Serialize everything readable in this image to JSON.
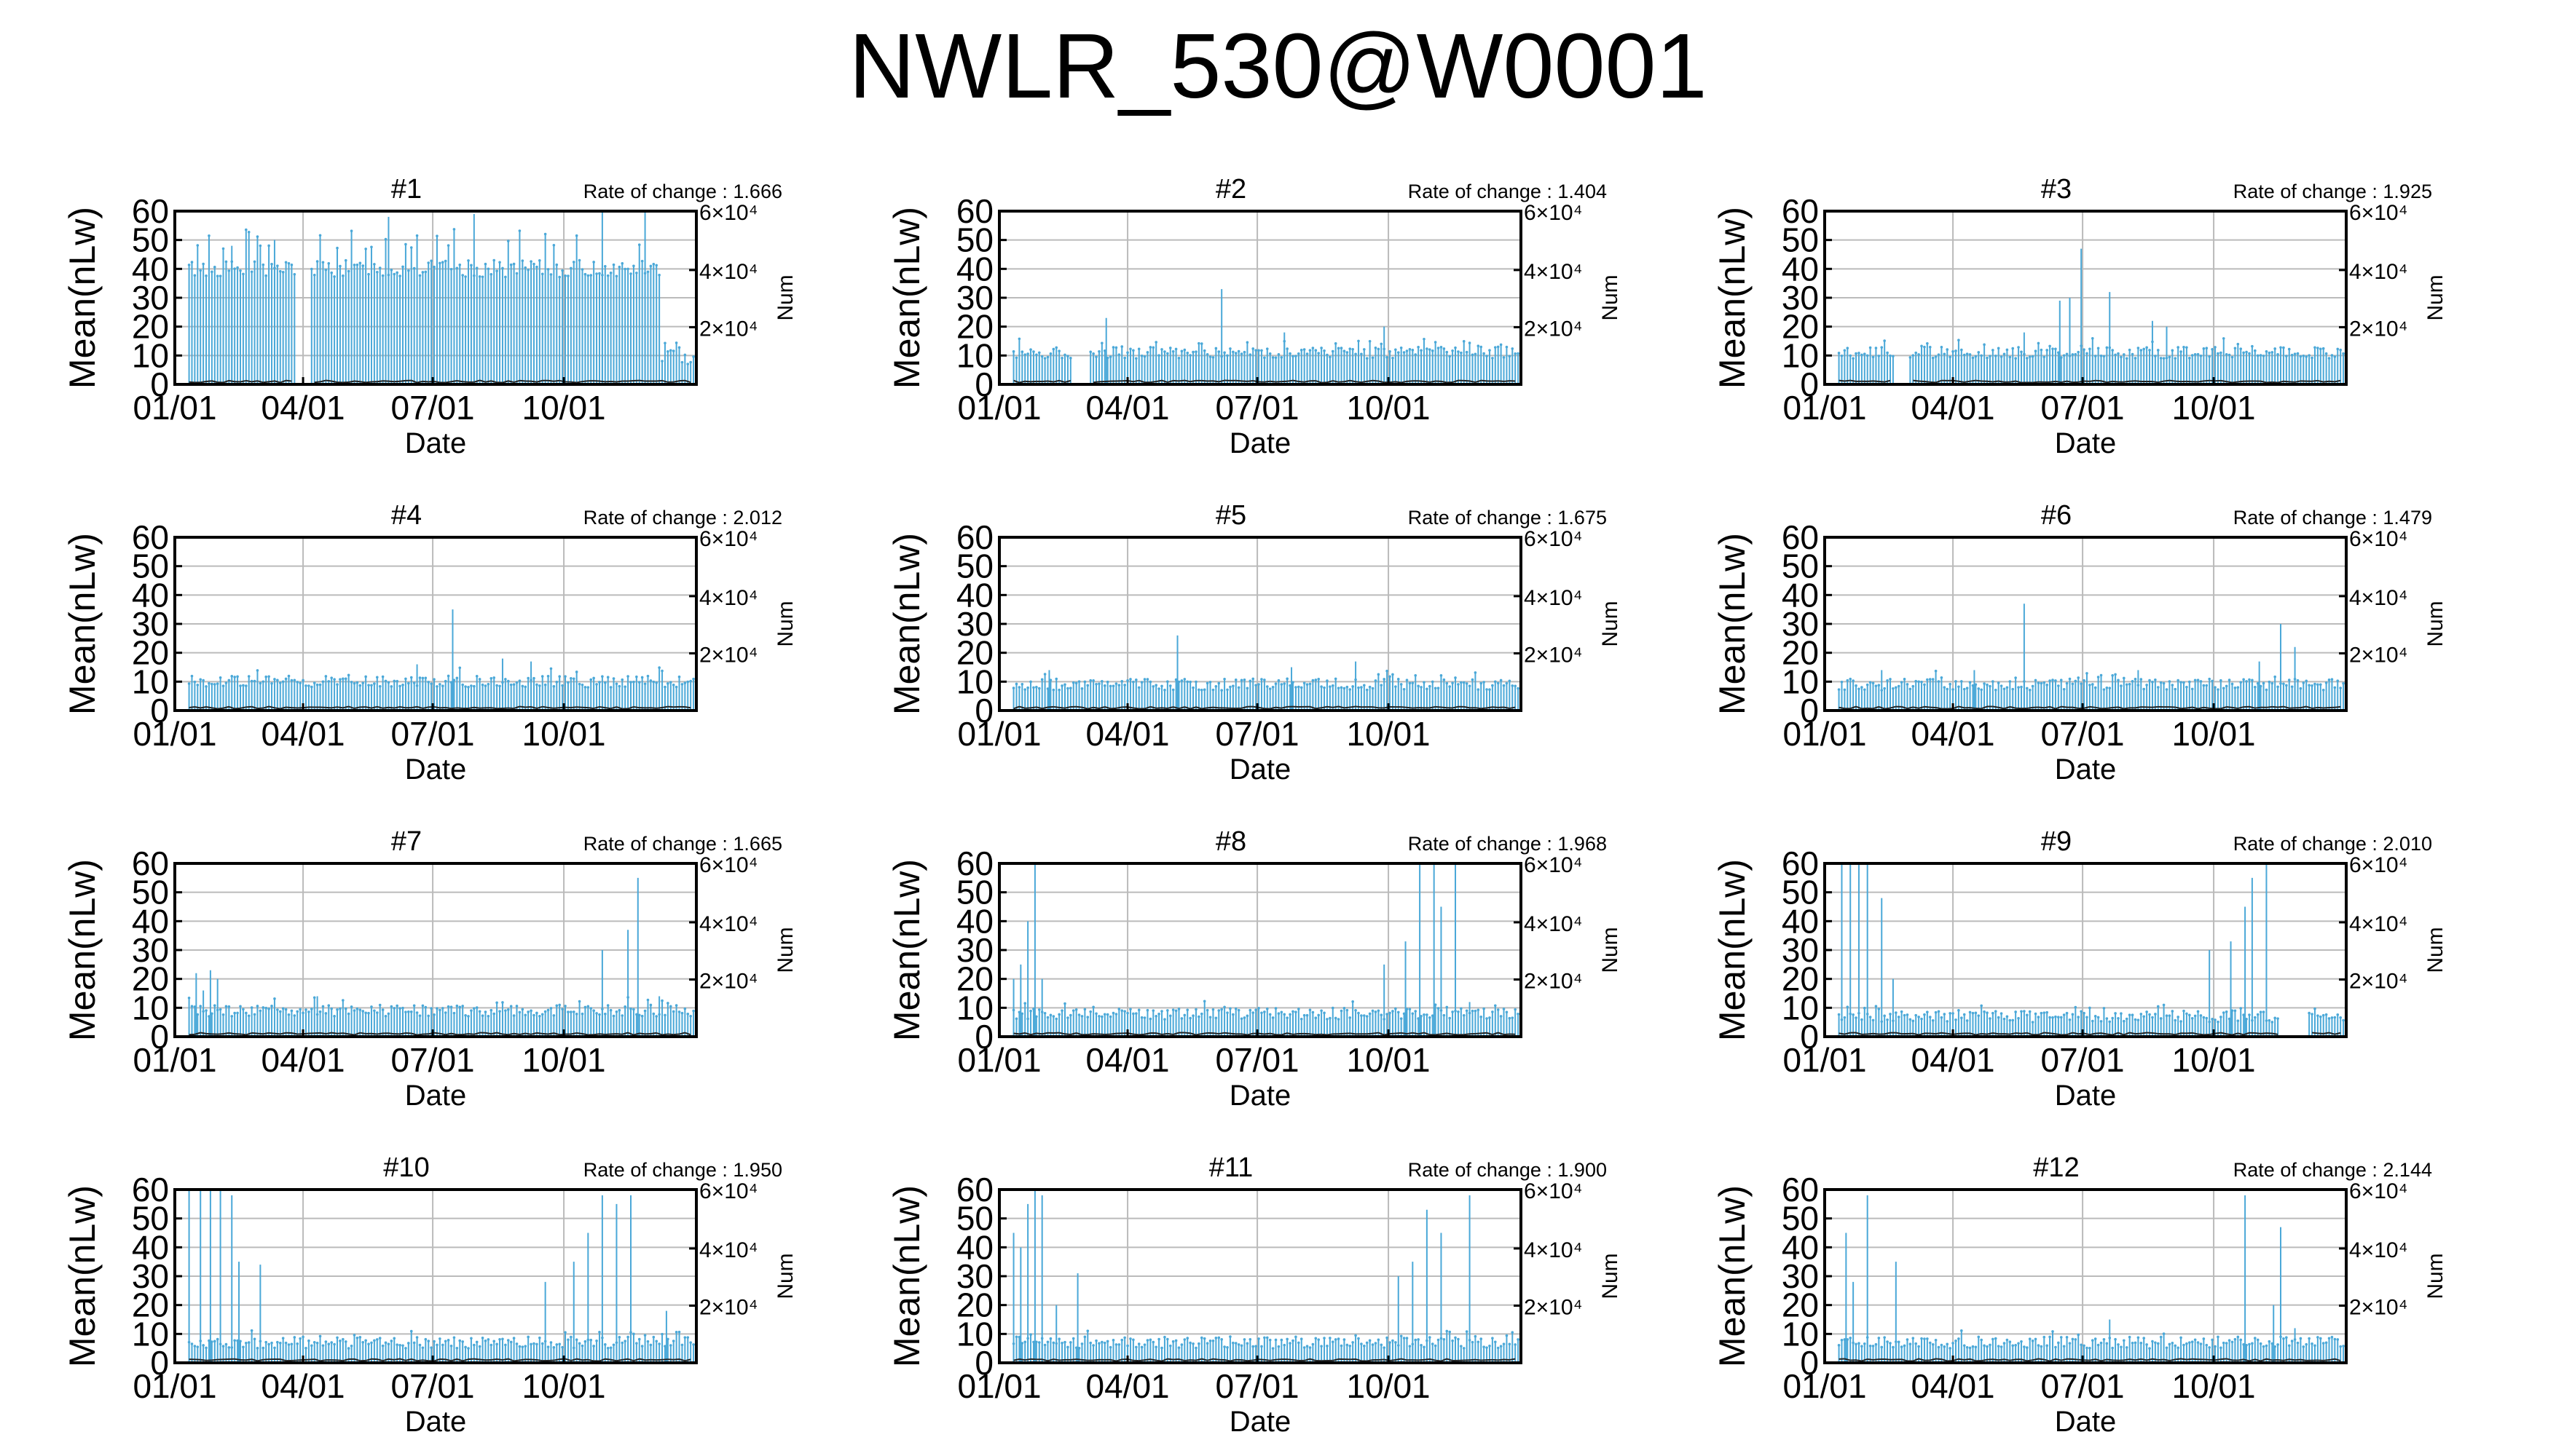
{
  "page": {
    "title": "NWLR_530@W0001"
  },
  "chart_data": [
    {
      "type": "line",
      "title": "#1",
      "rate_label": "Rate of change : 1.666",
      "xlabel": "Date",
      "ylabel": "Mean(nLw)",
      "y2label": "Num",
      "xticks": [
        "01/01",
        "04/01",
        "07/01",
        "10/01"
      ],
      "yticks": [
        "0",
        "10",
        "20",
        "30",
        "40",
        "50",
        "60"
      ],
      "y2ticks": [
        "2×10⁴",
        "4×10⁴",
        "6×10⁴"
      ],
      "ylim": [
        0,
        60
      ],
      "grid": true,
      "series": [
        {
          "color": "#4aa8d8",
          "baseline": 40,
          "spread": 3,
          "spikes": [
            [
              40,
              48
            ],
            [
              70,
              50
            ],
            [
              150,
              58
            ],
            [
              210,
              59
            ],
            [
              300,
              60
            ],
            [
              330,
              60
            ]
          ],
          "gaps": [
            [
              85,
              95
            ]
          ],
          "start": 10,
          "end": 340,
          "tail": 10
        }
      ]
    },
    {
      "type": "line",
      "title": "#2",
      "rate_label": "Rate of change : 1.404",
      "xlabel": "Date",
      "ylabel": "Mean(nLw)",
      "y2label": "Num",
      "xticks": [
        "01/01",
        "04/01",
        "07/01",
        "10/01"
      ],
      "yticks": [
        "0",
        "10",
        "20",
        "30",
        "40",
        "50",
        "60"
      ],
      "y2ticks": [
        "2×10⁴",
        "4×10⁴",
        "6×10⁴"
      ],
      "ylim": [
        0,
        60
      ],
      "grid": true,
      "series": [
        {
          "color": "#4aa8d8",
          "baseline": 11,
          "spread": 2,
          "spikes": [
            [
              75,
              23
            ],
            [
              156,
              33
            ],
            [
              200,
              18
            ],
            [
              270,
              20
            ]
          ],
          "gaps": [
            [
              52,
              62
            ]
          ],
          "start": 10,
          "end": 365,
          "tail": 10
        }
      ]
    },
    {
      "type": "line",
      "title": "#3",
      "rate_label": "Rate of change : 1.925",
      "xlabel": "Date",
      "ylabel": "Mean(nLw)",
      "y2label": "Num",
      "xticks": [
        "01/01",
        "04/01",
        "07/01",
        "10/01"
      ],
      "yticks": [
        "0",
        "10",
        "20",
        "30",
        "40",
        "50",
        "60"
      ],
      "y2ticks": [
        "2×10⁴",
        "4×10⁴",
        "6×10⁴"
      ],
      "ylim": [
        0,
        60
      ],
      "grid": true,
      "series": [
        {
          "color": "#4aa8d8",
          "baseline": 11,
          "spread": 2,
          "spikes": [
            [
              140,
              18
            ],
            [
              165,
              29
            ],
            [
              172,
              30
            ],
            [
              180,
              47
            ],
            [
              200,
              32
            ],
            [
              230,
              22
            ],
            [
              240,
              20
            ]
          ],
          "gaps": [
            [
              50,
              58
            ]
          ],
          "start": 10,
          "end": 365,
          "tail": 8
        }
      ]
    },
    {
      "type": "line",
      "title": "#4",
      "rate_label": "Rate of change : 2.012",
      "xlabel": "Date",
      "ylabel": "Mean(nLw)",
      "y2label": "Num",
      "xticks": [
        "01/01",
        "04/01",
        "07/01",
        "10/01"
      ],
      "yticks": [
        "0",
        "10",
        "20",
        "30",
        "40",
        "50",
        "60"
      ],
      "y2ticks": [
        "2×10⁴",
        "4×10⁴",
        "6×10⁴"
      ],
      "ylim": [
        0,
        60
      ],
      "grid": true,
      "series": [
        {
          "color": "#4aa8d8",
          "baseline": 10,
          "spread": 2,
          "spikes": [
            [
              170,
              16
            ],
            [
              195,
              35
            ],
            [
              230,
              18
            ],
            [
              250,
              17
            ]
          ],
          "gaps": [],
          "start": 10,
          "end": 365,
          "tail": 8
        }
      ]
    },
    {
      "type": "line",
      "title": "#5",
      "rate_label": "Rate of change : 1.675",
      "xlabel": "Date",
      "ylabel": "Mean(nLw)",
      "y2label": "Num",
      "xticks": [
        "01/01",
        "04/01",
        "07/01",
        "10/01"
      ],
      "yticks": [
        "0",
        "10",
        "20",
        "30",
        "40",
        "50",
        "60"
      ],
      "y2ticks": [
        "2×10⁴",
        "4×10⁴",
        "6×10⁴"
      ],
      "ylim": [
        0,
        60
      ],
      "grid": true,
      "series": [
        {
          "color": "#4aa8d8",
          "baseline": 9,
          "spread": 2,
          "spikes": [
            [
              35,
              14
            ],
            [
              125,
              26
            ],
            [
              205,
              15
            ],
            [
              250,
              17
            ]
          ],
          "gaps": [],
          "start": 10,
          "end": 365,
          "tail": 8
        }
      ]
    },
    {
      "type": "line",
      "title": "#6",
      "rate_label": "Rate of change : 1.479",
      "xlabel": "Date",
      "ylabel": "Mean(nLw)",
      "y2label": "Num",
      "xticks": [
        "01/01",
        "04/01",
        "07/01",
        "10/01"
      ],
      "yticks": [
        "0",
        "10",
        "20",
        "30",
        "40",
        "50",
        "60"
      ],
      "y2ticks": [
        "2×10⁴",
        "4×10⁴",
        "6×10⁴"
      ],
      "ylim": [
        0,
        60
      ],
      "grid": true,
      "series": [
        {
          "color": "#4aa8d8",
          "baseline": 9,
          "spread": 2,
          "spikes": [
            [
              40,
              14
            ],
            [
              105,
              14
            ],
            [
              140,
              37
            ],
            [
              220,
              14
            ],
            [
              305,
              17
            ],
            [
              320,
              30
            ],
            [
              330,
              22
            ]
          ],
          "gaps": [],
          "start": 10,
          "end": 365,
          "tail": 6
        }
      ]
    },
    {
      "type": "line",
      "title": "#7",
      "rate_label": "Rate of change : 1.665",
      "xlabel": "Date",
      "ylabel": "Mean(nLw)",
      "y2label": "Num",
      "xticks": [
        "01/01",
        "04/01",
        "07/01",
        "10/01"
      ],
      "yticks": [
        "0",
        "10",
        "20",
        "30",
        "40",
        "50",
        "60"
      ],
      "y2ticks": [
        "2×10⁴",
        "4×10⁴",
        "6×10⁴"
      ],
      "ylim": [
        0,
        60
      ],
      "grid": true,
      "series": [
        {
          "color": "#4aa8d8",
          "baseline": 9,
          "spread": 2,
          "spikes": [
            [
              15,
              22
            ],
            [
              20,
              16
            ],
            [
              25,
              23
            ],
            [
              30,
              20
            ],
            [
              100,
              14
            ],
            [
              300,
              30
            ],
            [
              318,
              37
            ],
            [
              325,
              55
            ],
            [
              340,
              14
            ]
          ],
          "gaps": [],
          "start": 10,
          "end": 365,
          "tail": 6
        }
      ]
    },
    {
      "type": "line",
      "title": "#8",
      "rate_label": "Rate of change : 1.968",
      "xlabel": "Date",
      "ylabel": "Mean(nLw)",
      "y2label": "Num",
      "xticks": [
        "01/01",
        "04/01",
        "07/01",
        "10/01"
      ],
      "yticks": [
        "0",
        "10",
        "20",
        "30",
        "40",
        "50",
        "60"
      ],
      "y2ticks": [
        "2×10⁴",
        "4×10⁴",
        "6×10⁴"
      ],
      "ylim": [
        0,
        60
      ],
      "grid": true,
      "series": [
        {
          "color": "#4aa8d8",
          "baseline": 8,
          "spread": 2,
          "spikes": [
            [
              10,
              20
            ],
            [
              15,
              25
            ],
            [
              20,
              40
            ],
            [
              25,
              60
            ],
            [
              30,
              20
            ],
            [
              270,
              25
            ],
            [
              285,
              33
            ],
            [
              295,
              60
            ],
            [
              305,
              60
            ],
            [
              310,
              45
            ],
            [
              320,
              60
            ],
            [
              330,
              12
            ]
          ],
          "gaps": [],
          "start": 10,
          "end": 365,
          "tail": 8
        }
      ]
    },
    {
      "type": "line",
      "title": "#9",
      "rate_label": "Rate of change : 2.010",
      "xlabel": "Date",
      "ylabel": "Mean(nLw)",
      "y2label": "Num",
      "xticks": [
        "01/01",
        "04/01",
        "07/01",
        "10/01"
      ],
      "yticks": [
        "0",
        "10",
        "20",
        "30",
        "40",
        "50",
        "60"
      ],
      "y2ticks": [
        "2×10⁴",
        "4×10⁴",
        "6×10⁴"
      ],
      "ylim": [
        0,
        60
      ],
      "grid": true,
      "series": [
        {
          "color": "#4aa8d8",
          "baseline": 7,
          "spread": 2,
          "spikes": [
            [
              12,
              60
            ],
            [
              18,
              60
            ],
            [
              24,
              60
            ],
            [
              30,
              60
            ],
            [
              40,
              48
            ],
            [
              48,
              20
            ],
            [
              270,
              30
            ],
            [
              285,
              33
            ],
            [
              295,
              45
            ],
            [
              300,
              55
            ],
            [
              310,
              60
            ]
          ],
          "gaps": [
            [
              320,
              338
            ]
          ],
          "start": 10,
          "end": 365,
          "tail": 12
        }
      ]
    },
    {
      "type": "line",
      "title": "#10",
      "rate_label": "Rate of change : 1.950",
      "xlabel": "Date",
      "ylabel": "Mean(nLw)",
      "y2label": "Num",
      "xticks": [
        "01/01",
        "04/01",
        "07/01",
        "10/01"
      ],
      "yticks": [
        "0",
        "10",
        "20",
        "30",
        "40",
        "50",
        "60"
      ],
      "y2ticks": [
        "2×10⁴",
        "4×10⁴",
        "6×10⁴"
      ],
      "ylim": [
        0,
        60
      ],
      "grid": true,
      "series": [
        {
          "color": "#4aa8d8",
          "baseline": 7,
          "spread": 2,
          "spikes": [
            [
              10,
              60
            ],
            [
              18,
              60
            ],
            [
              25,
              60
            ],
            [
              32,
              60
            ],
            [
              40,
              58
            ],
            [
              45,
              35
            ],
            [
              60,
              34
            ],
            [
              260,
              28
            ],
            [
              280,
              35
            ],
            [
              290,
              45
            ],
            [
              300,
              58
            ],
            [
              310,
              55
            ],
            [
              320,
              58
            ],
            [
              345,
              18
            ]
          ],
          "gaps": [],
          "start": 10,
          "end": 365,
          "tail": 14
        }
      ]
    },
    {
      "type": "line",
      "title": "#11",
      "rate_label": "Rate of change : 1.900",
      "xlabel": "Date",
      "ylabel": "Mean(nLw)",
      "y2label": "Num",
      "xticks": [
        "01/01",
        "04/01",
        "07/01",
        "10/01"
      ],
      "yticks": [
        "0",
        "10",
        "20",
        "30",
        "40",
        "50",
        "60"
      ],
      "y2ticks": [
        "2×10⁴",
        "4×10⁴",
        "6×10⁴"
      ],
      "ylim": [
        0,
        60
      ],
      "grid": true,
      "series": [
        {
          "color": "#4aa8d8",
          "baseline": 7,
          "spread": 2,
          "spikes": [
            [
              10,
              45
            ],
            [
              15,
              40
            ],
            [
              20,
              55
            ],
            [
              25,
              60
            ],
            [
              30,
              58
            ],
            [
              40,
              20
            ],
            [
              55,
              31
            ],
            [
              280,
              30
            ],
            [
              290,
              35
            ],
            [
              300,
              53
            ],
            [
              310,
              45
            ],
            [
              330,
              58
            ]
          ],
          "gaps": [],
          "start": 10,
          "end": 365,
          "tail": 10
        }
      ]
    },
    {
      "type": "line",
      "title": "#12",
      "rate_label": "Rate of change : 2.144",
      "xlabel": "Date",
      "ylabel": "Mean(nLw)",
      "y2label": "Num",
      "xticks": [
        "01/01",
        "04/01",
        "07/01",
        "10/01"
      ],
      "yticks": [
        "0",
        "10",
        "20",
        "30",
        "40",
        "50",
        "60"
      ],
      "y2ticks": [
        "2×10⁴",
        "4×10⁴",
        "6×10⁴"
      ],
      "ylim": [
        0,
        60
      ],
      "grid": true,
      "series": [
        {
          "color": "#4aa8d8",
          "baseline": 7,
          "spread": 2,
          "spikes": [
            [
              15,
              45
            ],
            [
              20,
              28
            ],
            [
              30,
              58
            ],
            [
              50,
              35
            ],
            [
              200,
              15
            ],
            [
              295,
              58
            ],
            [
              315,
              20
            ],
            [
              320,
              47
            ],
            [
              330,
              12
            ]
          ],
          "gaps": [],
          "start": 10,
          "end": 365,
          "tail": 6
        }
      ]
    }
  ]
}
